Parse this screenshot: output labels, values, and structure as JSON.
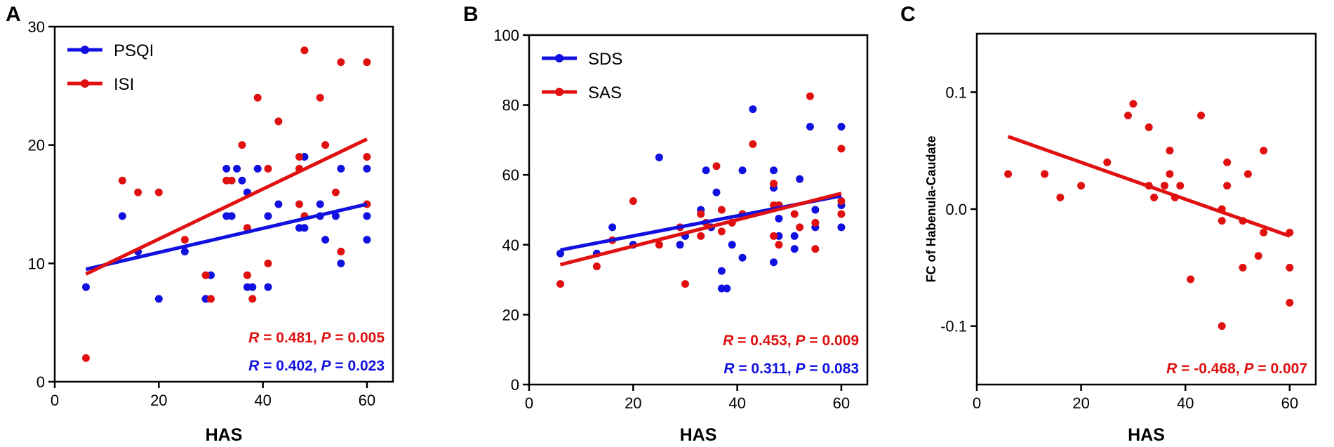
{
  "colors": {
    "blue": "#1010e0",
    "red": "#e01010",
    "axis": "#000000"
  },
  "chart_data": [
    {
      "panel": "A",
      "type": "scatter",
      "xlabel": "HAS",
      "ylabel": "",
      "xlim": [
        0,
        65
      ],
      "ylim": [
        0,
        30
      ],
      "xticks": [
        0,
        20,
        40,
        60
      ],
      "yticks": [
        0,
        10,
        20,
        30
      ],
      "legend": "top-left",
      "series": [
        {
          "name": "PSQI",
          "color": "blue",
          "fit": [
            [
              6,
              9.5
            ],
            [
              60,
              15
            ]
          ],
          "points": [
            [
              6,
              8
            ],
            [
              13,
              14
            ],
            [
              16,
              11
            ],
            [
              20,
              7
            ],
            [
              25,
              11
            ],
            [
              29,
              7
            ],
            [
              30,
              9
            ],
            [
              33,
              14
            ],
            [
              33,
              18
            ],
            [
              34,
              14
            ],
            [
              35,
              18
            ],
            [
              36,
              17
            ],
            [
              37,
              16
            ],
            [
              37,
              8
            ],
            [
              38,
              8
            ],
            [
              39,
              18
            ],
            [
              41,
              14
            ],
            [
              41,
              8
            ],
            [
              43,
              15
            ],
            [
              47,
              13
            ],
            [
              48,
              13
            ],
            [
              48,
              19
            ],
            [
              51,
              15
            ],
            [
              51,
              14
            ],
            [
              52,
              12
            ],
            [
              54,
              14
            ],
            [
              55,
              18
            ],
            [
              55,
              10
            ],
            [
              60,
              18
            ],
            [
              60,
              14
            ],
            [
              60,
              12
            ]
          ]
        },
        {
          "name": "ISI",
          "color": "red",
          "fit": [
            [
              6,
              9.1
            ],
            [
              60,
              20.5
            ]
          ],
          "points": [
            [
              6,
              2
            ],
            [
              13,
              17
            ],
            [
              16,
              16
            ],
            [
              20,
              16
            ],
            [
              25,
              12
            ],
            [
              29,
              9
            ],
            [
              30,
              7
            ],
            [
              33,
              17
            ],
            [
              34,
              17
            ],
            [
              36,
              20
            ],
            [
              37,
              13
            ],
            [
              37,
              9
            ],
            [
              38,
              7
            ],
            [
              39,
              24
            ],
            [
              41,
              18
            ],
            [
              41,
              10
            ],
            [
              43,
              22
            ],
            [
              47,
              19
            ],
            [
              47,
              18
            ],
            [
              47,
              15
            ],
            [
              48,
              28
            ],
            [
              48,
              14
            ],
            [
              51,
              24
            ],
            [
              52,
              20
            ],
            [
              54,
              16
            ],
            [
              55,
              27
            ],
            [
              55,
              11
            ],
            [
              60,
              27
            ],
            [
              60,
              19
            ],
            [
              60,
              15
            ]
          ]
        }
      ],
      "stats": [
        {
          "r": "0.481",
          "p": "0.005",
          "color": "red"
        },
        {
          "r": "0.402",
          "p": "0.023",
          "color": "blue"
        }
      ]
    },
    {
      "panel": "B",
      "type": "scatter",
      "xlabel": "HAS",
      "ylabel": "",
      "xlim": [
        0,
        65
      ],
      "ylim": [
        0,
        100
      ],
      "xticks": [
        0,
        20,
        40,
        60
      ],
      "yticks": [
        0,
        20,
        40,
        60,
        80,
        100
      ],
      "legend": "top-left",
      "series": [
        {
          "name": "SDS",
          "color": "blue",
          "fit": [
            [
              6,
              38.5
            ],
            [
              60,
              54
            ]
          ],
          "points": [
            [
              6,
              37.5
            ],
            [
              13,
              37.5
            ],
            [
              16,
              45
            ],
            [
              20,
              40
            ],
            [
              25,
              65
            ],
            [
              29,
              40
            ],
            [
              30,
              42.5
            ],
            [
              33,
              50
            ],
            [
              34,
              61.3
            ],
            [
              35,
              45
            ],
            [
              36,
              55
            ],
            [
              37,
              32.5
            ],
            [
              37,
              27.5
            ],
            [
              38,
              27.5
            ],
            [
              39,
              40
            ],
            [
              41,
              61.3
            ],
            [
              41,
              36.3
            ],
            [
              43,
              78.8
            ],
            [
              47,
              61.3
            ],
            [
              47,
              56.3
            ],
            [
              47,
              35
            ],
            [
              48,
              47.5
            ],
            [
              48,
              42.5
            ],
            [
              48,
              51.3
            ],
            [
              51,
              38.8
            ],
            [
              51,
              42.5
            ],
            [
              52,
              58.8
            ],
            [
              54,
              73.8
            ],
            [
              55,
              50
            ],
            [
              55,
              45
            ],
            [
              60,
              73.8
            ],
            [
              60,
              51.3
            ],
            [
              60,
              45
            ]
          ]
        },
        {
          "name": "SAS",
          "color": "red",
          "fit": [
            [
              6,
              34.3
            ],
            [
              60,
              54.7
            ]
          ],
          "points": [
            [
              6,
              28.8
            ],
            [
              13,
              33.8
            ],
            [
              16,
              41.3
            ],
            [
              20,
              52.5
            ],
            [
              25,
              40
            ],
            [
              29,
              45
            ],
            [
              30,
              28.8
            ],
            [
              33,
              42.5
            ],
            [
              33,
              48.8
            ],
            [
              34,
              46.3
            ],
            [
              36,
              62.5
            ],
            [
              37,
              50
            ],
            [
              37,
              43.8
            ],
            [
              39,
              46.3
            ],
            [
              41,
              48.8
            ],
            [
              43,
              68.8
            ],
            [
              47,
              57.5
            ],
            [
              47,
              51.3
            ],
            [
              47,
              42.5
            ],
            [
              48,
              51.3
            ],
            [
              48,
              40
            ],
            [
              51,
              48.8
            ],
            [
              52,
              45
            ],
            [
              54,
              82.5
            ],
            [
              55,
              38.8
            ],
            [
              55,
              46.3
            ],
            [
              60,
              67.5
            ],
            [
              60,
              52.5
            ],
            [
              60,
              48.8
            ]
          ]
        }
      ],
      "stats": [
        {
          "r": "0.453",
          "p": "0.009",
          "color": "red"
        },
        {
          "r": "0.311",
          "p": "0.083",
          "color": "blue"
        }
      ]
    },
    {
      "panel": "C",
      "type": "scatter",
      "xlabel": "HAS",
      "ylabel": "FC of Habenula-Caudate",
      "xlim": [
        0,
        65
      ],
      "ylim": [
        -0.15,
        0.15
      ],
      "xticks": [
        0,
        20,
        40,
        60
      ],
      "yticks": [
        -0.1,
        0.0,
        0.1
      ],
      "ytick_labels": [
        "-0.1",
        "0.0",
        "0.1"
      ],
      "legend": "none",
      "series": [
        {
          "name": "FC",
          "color": "red",
          "fit": [
            [
              6,
              0.062
            ],
            [
              60,
              -0.023
            ]
          ],
          "points": [
            [
              6,
              0.03
            ],
            [
              13,
              0.03
            ],
            [
              16,
              0.01
            ],
            [
              20,
              0.02
            ],
            [
              25,
              0.04
            ],
            [
              29,
              0.08
            ],
            [
              30,
              0.09
            ],
            [
              33,
              0.07
            ],
            [
              33,
              0.02
            ],
            [
              34,
              0.01
            ],
            [
              36,
              0.02
            ],
            [
              37,
              0.05
            ],
            [
              37,
              0.03
            ],
            [
              38,
              0.01
            ],
            [
              39,
              0.02
            ],
            [
              41,
              -0.06
            ],
            [
              43,
              0.08
            ],
            [
              47,
              0.0
            ],
            [
              47,
              -0.01
            ],
            [
              47,
              -0.1
            ],
            [
              48,
              0.04
            ],
            [
              48,
              0.02
            ],
            [
              51,
              -0.01
            ],
            [
              51,
              -0.05
            ],
            [
              52,
              0.03
            ],
            [
              54,
              -0.04
            ],
            [
              55,
              0.05
            ],
            [
              55,
              -0.02
            ],
            [
              60,
              -0.02
            ],
            [
              60,
              -0.05
            ],
            [
              60,
              -0.08
            ]
          ]
        }
      ],
      "stats": [
        {
          "r": "-0.468",
          "p": "0.007",
          "color": "red"
        }
      ]
    }
  ]
}
